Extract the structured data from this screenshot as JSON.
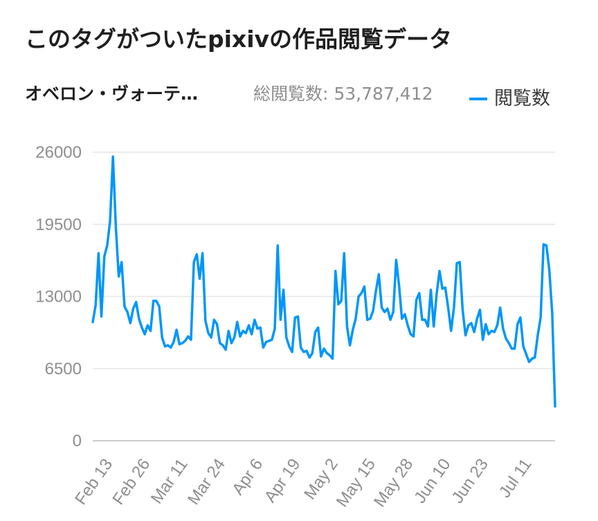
{
  "page": {
    "title": "このタグがついたpixivの作品閲覧データ",
    "tag_name": "オベロン・ヴォーテ…",
    "total_label": "総閲覧数: ",
    "total_value": "53,787,412"
  },
  "colors": {
    "line": "#0096fa",
    "grid": "#e6e6e6",
    "axis": "#cccccc",
    "tick_text": "#8e8e8e"
  },
  "chart_data": {
    "type": "line",
    "title": "",
    "xlabel": "",
    "ylabel": "",
    "ylim": [
      0,
      26000
    ],
    "y_ticks": [
      "26000",
      "19500",
      "13000",
      "6500",
      "0"
    ],
    "x_ticks": [
      "Feb 13",
      "Feb 26",
      "Mar 11",
      "Mar 24",
      "Apr 6",
      "Apr 19",
      "May 2",
      "May 15",
      "May 28",
      "Jun 10",
      "Jun 23",
      "Jul 11"
    ],
    "x_tick_index": [
      7,
      20,
      33,
      46,
      59,
      72,
      85,
      98,
      111,
      124,
      137,
      152
    ],
    "grid": true,
    "legend": "top-right",
    "series": [
      {
        "name": "閲覧数",
        "values": [
          10700,
          12200,
          16900,
          11200,
          16600,
          17600,
          19800,
          25600,
          19200,
          14800,
          16100,
          12100,
          11600,
          10600,
          11900,
          12500,
          11000,
          10200,
          9600,
          10400,
          9900,
          12600,
          12600,
          12100,
          9300,
          8500,
          8600,
          8400,
          8900,
          10000,
          8700,
          8800,
          9000,
          9400,
          9100,
          16100,
          16800,
          14600,
          16900,
          10800,
          9700,
          9300,
          10900,
          10500,
          8800,
          8600,
          8200,
          9900,
          8800,
          9300,
          10700,
          9400,
          9900,
          9700,
          10400,
          9600,
          10900,
          10100,
          10200,
          8400,
          8900,
          9000,
          9100,
          10100,
          17600,
          10900,
          13600,
          9300,
          8500,
          8000,
          11100,
          11200,
          8400,
          8000,
          8100,
          7500,
          7900,
          9800,
          10200,
          7600,
          8300,
          7900,
          7700,
          7400,
          15300,
          12300,
          12600,
          16900,
          10300,
          8600,
          10000,
          11000,
          13000,
          13300,
          13900,
          10900,
          11000,
          11700,
          13500,
          15000,
          12000,
          11600,
          11900,
          10900,
          11600,
          16300,
          14000,
          11000,
          11400,
          10400,
          9600,
          9400,
          12700,
          13300,
          10900,
          10900,
          10300,
          13600,
          10300,
          13200,
          15300,
          13700,
          13800,
          12000,
          9900,
          12000,
          16000,
          16100,
          11800,
          9500,
          10400,
          10600,
          9800,
          11000,
          11800,
          9100,
          10500,
          9600,
          9900,
          9800,
          10400,
          12000,
          10100,
          9200,
          8800,
          8300,
          8300,
          10500,
          11100,
          8500,
          7800,
          7100,
          7400,
          7500,
          9500,
          11100,
          17700,
          17600,
          15400,
          11500,
          3100
        ]
      }
    ]
  }
}
